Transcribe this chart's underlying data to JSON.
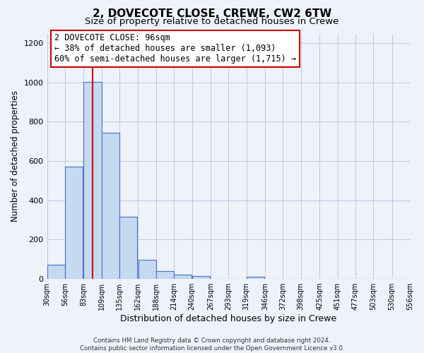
{
  "title": "2, DOVECOTE CLOSE, CREWE, CW2 6TW",
  "subtitle": "Size of property relative to detached houses in Crewe",
  "xlabel": "Distribution of detached houses by size in Crewe",
  "ylabel": "Number of detached properties",
  "bin_edges": [
    30,
    56,
    83,
    109,
    135,
    162,
    188,
    214,
    240,
    267,
    293,
    319,
    346,
    372,
    398,
    425,
    451,
    477,
    503,
    530,
    556
  ],
  "bar_heights": [
    70,
    570,
    1005,
    745,
    315,
    95,
    40,
    20,
    15,
    0,
    0,
    10,
    0,
    0,
    0,
    0,
    0,
    0,
    0,
    0
  ],
  "bar_color": "#c5d9f1",
  "bar_edge_color": "#4472c4",
  "property_line_x": 96,
  "property_line_color": "#cc0000",
  "annotation_line1": "2 DOVECOTE CLOSE: 96sqm",
  "annotation_line2": "← 38% of detached houses are smaller (1,093)",
  "annotation_line3": "60% of semi-detached houses are larger (1,715) →",
  "annotation_box_color": "#cc0000",
  "ylim": [
    0,
    1250
  ],
  "yticks": [
    0,
    200,
    400,
    600,
    800,
    1000,
    1200
  ],
  "footer_text": "Contains HM Land Registry data © Crown copyright and database right 2024.\nContains public sector information licensed under the Open Government Licence v3.0.",
  "title_fontsize": 11,
  "subtitle_fontsize": 9.5,
  "xlabel_fontsize": 9,
  "ylabel_fontsize": 8.5,
  "annotation_fontsize": 8.5,
  "background_color": "#eef2fb",
  "plot_background_color": "#eef2fb"
}
